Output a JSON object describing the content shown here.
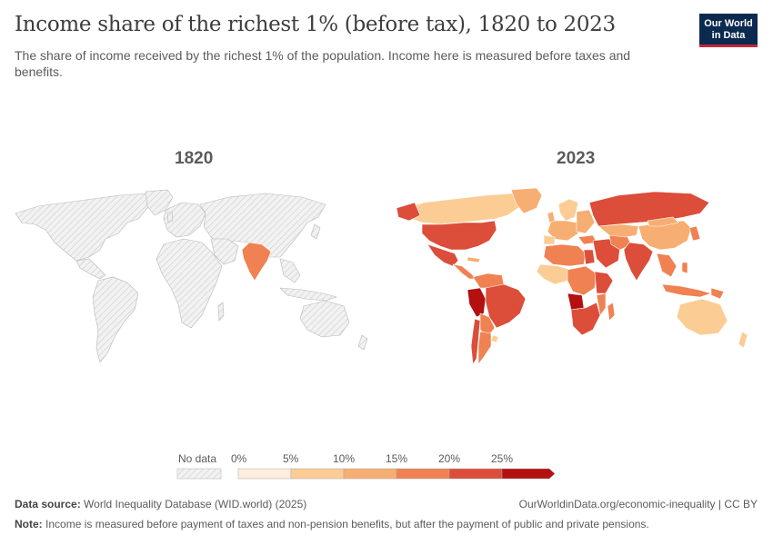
{
  "header": {
    "title": "Income share of the richest 1% (before tax), 1820 to 2023",
    "subtitle": "The share of income received by the richest 1% of the population. Income here is measured before taxes and benefits.",
    "logo_line1": "Our World",
    "logo_line2": "in Data"
  },
  "maps": [
    {
      "year": "1820"
    },
    {
      "year": "2023"
    }
  ],
  "legend": {
    "no_data_label": "No data",
    "bins": [
      {
        "label": "0%",
        "color": "#fdeede"
      },
      {
        "label": "5%",
        "color": "#fbcd94"
      },
      {
        "label": "10%",
        "color": "#f7ae72"
      },
      {
        "label": "15%",
        "color": "#f08152"
      },
      {
        "label": "20%",
        "color": "#dc4d3a"
      },
      {
        "label": "25%",
        "color": "#b3100f"
      }
    ]
  },
  "footer": {
    "source_label": "Data source:",
    "source_text": "World Inequality Database (WID.world) (2025)",
    "url": "OurWorldinData.org/economic-inequality | CC BY",
    "note_label": "Note:",
    "note_text": "Income is measured before payment of taxes and non-pension benefits, but after the payment of public and private pensions."
  },
  "colors": {
    "no_data_fill": "#eeeeee",
    "no_data_hatch": "#c8c8c8",
    "india_1820": "#f08152",
    "border": "#ffffff"
  }
}
